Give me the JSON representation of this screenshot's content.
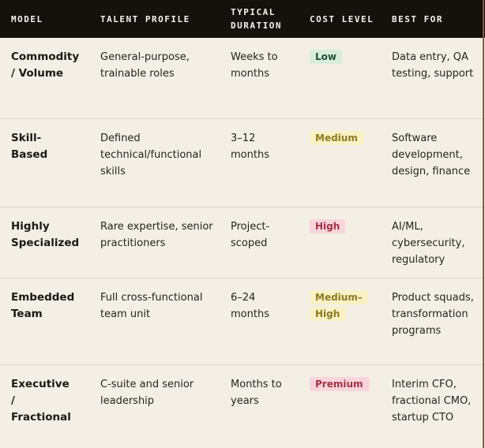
{
  "table": {
    "columns": [
      "MODEL",
      "TALENT PROFILE",
      "TYPICAL DURATION",
      "COST LEVEL",
      "BEST FOR"
    ],
    "rows": [
      {
        "model": "Commodity / Volume",
        "talent_profile": "General-purpose, trainable roles",
        "typical_duration": "Weeks to months",
        "cost_level": "Low",
        "cost_color": "green",
        "best_for": "Data entry, QA testing, support"
      },
      {
        "model": "Skill-Based",
        "talent_profile": "Defined technical/functional skills",
        "typical_duration": "3–12 months",
        "cost_level": "Medium",
        "cost_color": "yellow",
        "best_for": "Software development, design, finance"
      },
      {
        "model": "Highly Specialized",
        "talent_profile": "Rare expertise, senior practitioners",
        "typical_duration": "Project-scoped",
        "cost_level": "High",
        "cost_color": "pink",
        "best_for": "AI/ML, cybersecurity, regulatory"
      },
      {
        "model": "Embedded Team",
        "talent_profile": "Full cross-functional team unit",
        "typical_duration": "6–24 months",
        "cost_level": "Medium–High",
        "cost_color": "yellow",
        "best_for": "Product squads, transformation programs"
      },
      {
        "model": "Executive / Fractional",
        "talent_profile": "C-suite and senior leadership",
        "typical_duration": "Months to years",
        "cost_level": "Premium",
        "cost_color": "pink",
        "best_for": "Interim CFO, fractional CMO, startup CTO"
      }
    ]
  },
  "colors": {
    "background": "#f3efe5",
    "header_bg": "#15110d",
    "header_text": "#f6f3ea",
    "body_text": "#262420",
    "divider": "#dcd6c7",
    "right_edge_line": "#b04a31",
    "badge_green_bg": "#d9ecdc",
    "badge_green_text": "#1d5233",
    "badge_yellow_bg": "#faf1c5",
    "badge_yellow_text": "#8c7b22",
    "badge_pink_bg": "#f8d5db",
    "badge_pink_text": "#a03343"
  }
}
